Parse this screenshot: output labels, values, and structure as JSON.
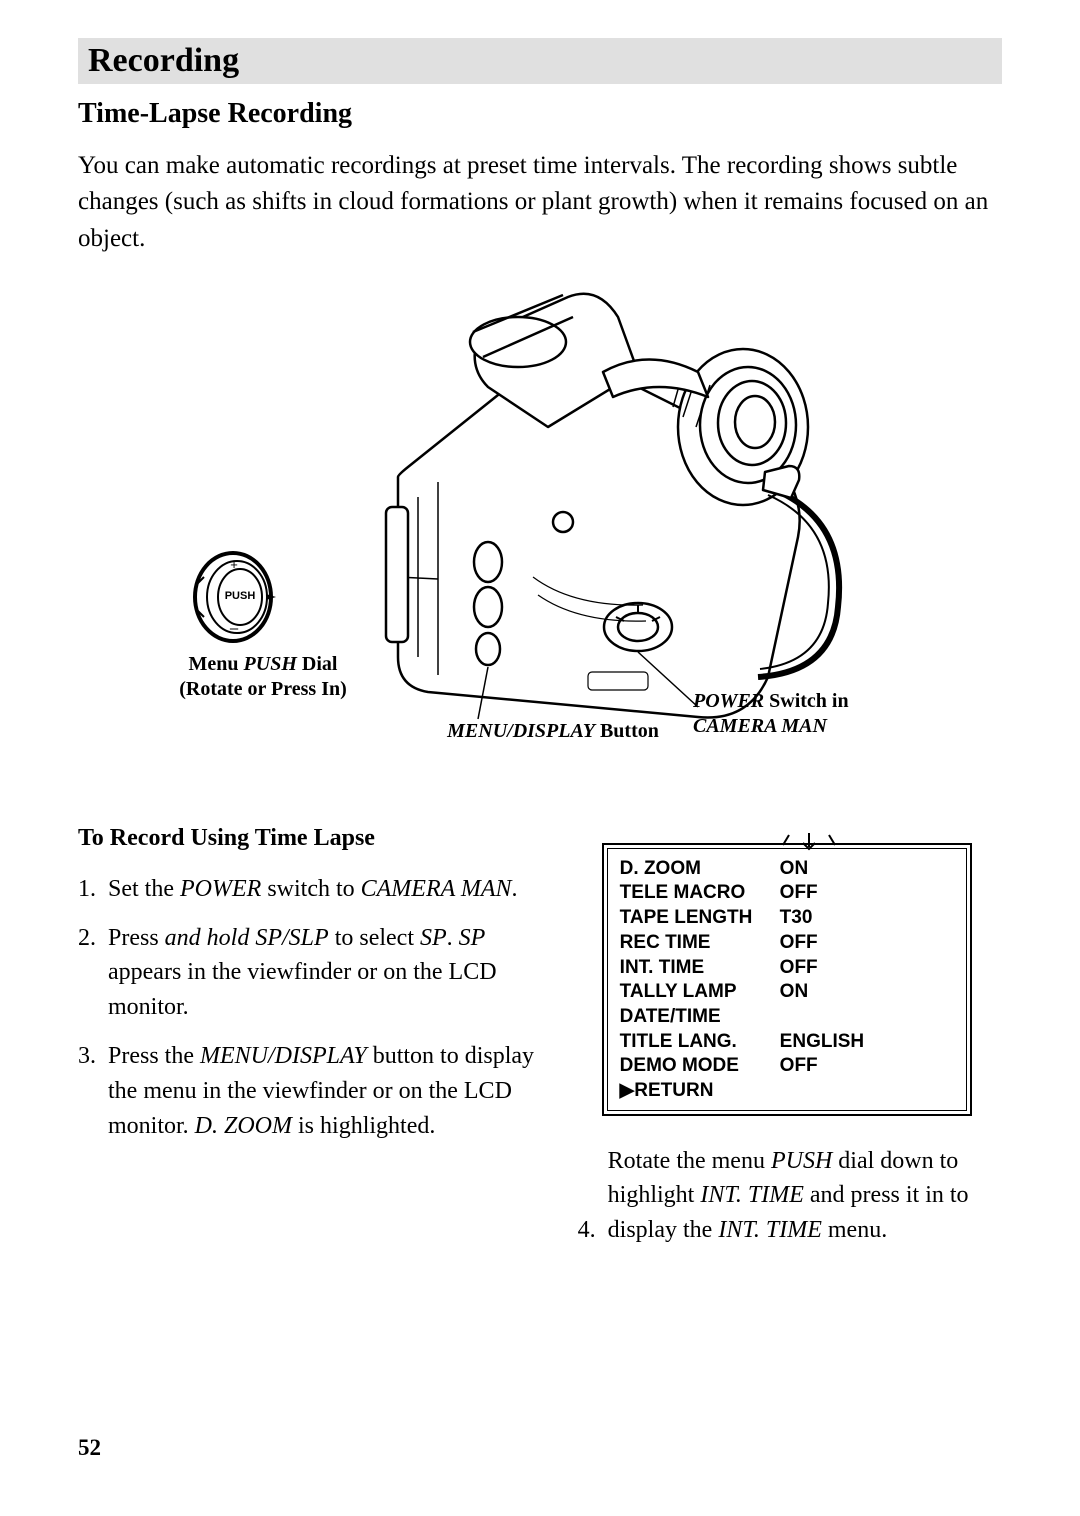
{
  "header": {
    "title": "Recording"
  },
  "subhead": "Time-Lapse Recording",
  "intro": "You can make automatic recordings at preset time intervals.  The recording shows subtle changes (such as shifts in cloud formations or plant growth) when it remains focused on an object.",
  "labels": {
    "push_dial_line1": "Menu ",
    "push_dial_push": "PUSH",
    "push_dial_line1b": " Dial",
    "push_dial_line2": "(Rotate or Press In)",
    "power_line1a": "POWER",
    "power_line1b": " Switch in",
    "power_line2": "CAMERA MAN",
    "menu_btn_a": "MENU/DISPLAY",
    "menu_btn_b": " Button",
    "push_icon_text": "PUSH"
  },
  "sub2": "To Record Using Time Lapse",
  "steps_left": [
    {
      "parts": [
        {
          "t": "Set the "
        },
        {
          "t": "POWER",
          "i": true
        },
        {
          "t": " switch to "
        },
        {
          "t": "CAMERA MAN",
          "i": true
        },
        {
          "t": "."
        }
      ]
    },
    {
      "parts": [
        {
          "t": "Press "
        },
        {
          "t": "and hold SP/SLP",
          "i": true
        },
        {
          "t": " to select "
        },
        {
          "t": "SP",
          "i": true
        },
        {
          "t": ". "
        },
        {
          "t": "SP",
          "i": true
        },
        {
          "t": " appears in the viewfinder or on the LCD monitor."
        }
      ]
    },
    {
      "parts": [
        {
          "t": "Press the "
        },
        {
          "t": "MENU/DISPLAY",
          "i": true
        },
        {
          "t": " button to display the menu in the viewfinder or on the LCD monitor.  "
        },
        {
          "t": "D. ZOOM",
          "i": true
        },
        {
          "t": " is highlighted."
        }
      ]
    }
  ],
  "steps_right": [
    {
      "n": "4",
      "parts": [
        {
          "t": "Rotate the menu "
        },
        {
          "t": "PUSH",
          "i": true
        },
        {
          "t": " dial down to highlight "
        },
        {
          "t": "INT. TIME",
          "i": true
        },
        {
          "t": " and press it in to display the "
        },
        {
          "t": "INT. TIME",
          "i": true
        },
        {
          "t": " menu."
        }
      ]
    }
  ],
  "menu": {
    "rows": [
      {
        "k": "D. ZOOM",
        "v": "ON"
      },
      {
        "k": "TELE MACRO",
        "v": "OFF"
      },
      {
        "k": "TAPE LENGTH",
        "v": "T30"
      },
      {
        "k": "REC TIME",
        "v": "OFF"
      },
      {
        "k": "INT. TIME",
        "v": "OFF"
      },
      {
        "k": "TALLY LAMP",
        "v": "ON"
      },
      {
        "k": "DATE/TIME",
        "v": ""
      },
      {
        "k": "TITLE LANG.",
        "v": "ENGLISH"
      },
      {
        "k": "DEMO MODE",
        "v": "OFF"
      },
      {
        "k": "▶RETURN",
        "v": ""
      }
    ]
  },
  "page_number": "52",
  "colors": {
    "header_bg": "#e0e0e0",
    "text": "#000000"
  }
}
